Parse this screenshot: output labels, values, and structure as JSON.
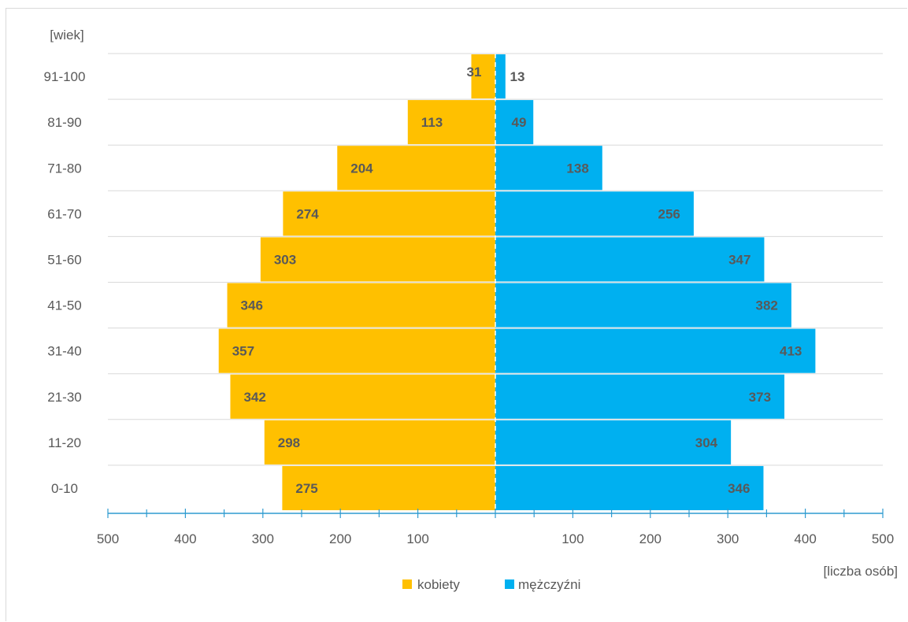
{
  "colors": {
    "kobiety": "#FFC000",
    "mezczyzni": "#00B0F0",
    "axis": "#2E9BD0",
    "grid": "#D9D9D9",
    "text": "#595959"
  },
  "chart_data": {
    "type": "bar",
    "orientation": "horizontal-population-pyramid",
    "categories": [
      "0-10",
      "11-20",
      "21-30",
      "31-40",
      "41-50",
      "51-60",
      "61-70",
      "71-80",
      "81-90",
      "91-100"
    ],
    "series": [
      {
        "name": "kobiety",
        "values": [
          275,
          298,
          342,
          357,
          346,
          303,
          274,
          204,
          113,
          31
        ]
      },
      {
        "name": "mężczyźni",
        "values": [
          346,
          304,
          373,
          413,
          382,
          347,
          256,
          138,
          49,
          13
        ]
      }
    ],
    "ylabel": "[wiek]",
    "xlabel": "[liczba osób]",
    "xlim": [
      -500,
      500
    ],
    "x_tick_labels": [
      "500",
      "400",
      "300",
      "200",
      "100",
      "",
      "100",
      "200",
      "300",
      "400",
      "500"
    ],
    "legend_position": "bottom",
    "grid": "horizontal"
  }
}
